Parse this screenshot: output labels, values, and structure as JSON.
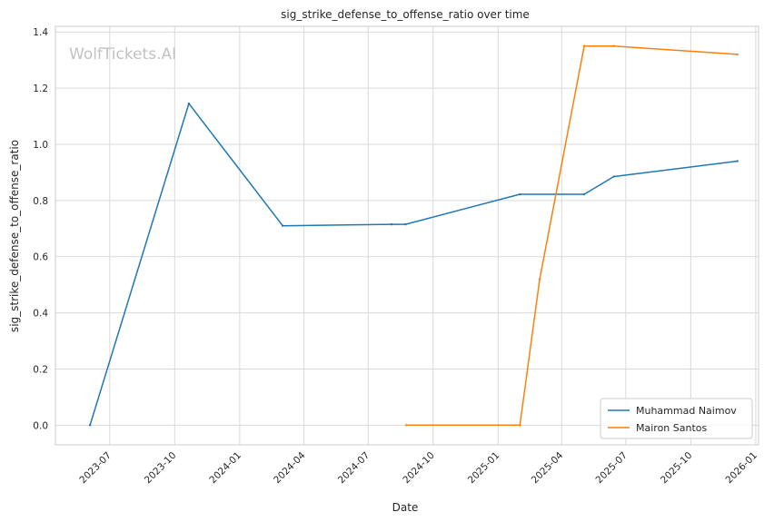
{
  "chart_data": {
    "type": "line",
    "title": "sig_strike_defense_to_offense_ratio over time",
    "xlabel": "Date",
    "ylabel": "sig_strike_defense_to_offense_ratio",
    "watermark": "WolfTickets.AI",
    "xlim": [
      "2023-04-15",
      "2026-01-05"
    ],
    "ylim": [
      -0.07,
      1.42
    ],
    "x_ticks": [
      "2023-07",
      "2023-10",
      "2024-01",
      "2024-04",
      "2024-07",
      "2024-10",
      "2025-01",
      "2025-04",
      "2025-07",
      "2025-10",
      "2026-01"
    ],
    "y_ticks": [
      "0.0",
      "0.2",
      "0.4",
      "0.6",
      "0.8",
      "1.0",
      "1.2",
      "1.4"
    ],
    "grid": true,
    "legend_position": "lower-right",
    "series": [
      {
        "name": "Muhammad Naimov",
        "color": "#1f77b4",
        "x": [
          "2023-06-03",
          "2023-10-21",
          "2024-03-02",
          "2024-08-03",
          "2024-08-23",
          "2025-02-01",
          "2025-05-03",
          "2025-06-14",
          "2025-12-06"
        ],
        "y": [
          0.0,
          1.145,
          0.71,
          0.715,
          0.715,
          0.822,
          0.822,
          0.885,
          0.94
        ]
      },
      {
        "name": "Mairon Santos",
        "color": "#ff7f0e",
        "x": [
          "2024-08-24",
          "2025-02-01",
          "2025-03-01",
          "2025-05-03",
          "2025-06-14",
          "2025-12-06"
        ],
        "y": [
          0.0,
          0.0,
          0.52,
          1.35,
          1.35,
          1.32
        ]
      }
    ]
  }
}
